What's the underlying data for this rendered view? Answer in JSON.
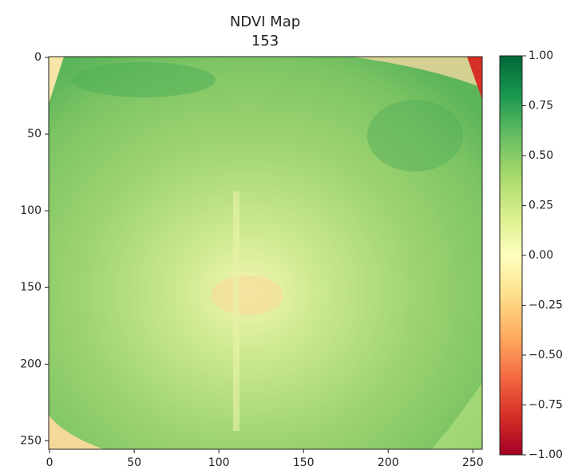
{
  "chart_data": {
    "type": "heatmap",
    "title": "NDVI Map",
    "subtitle": "153",
    "xlim": [
      -0.5,
      255.5
    ],
    "ylim": [
      255.5,
      -0.5
    ],
    "xticks": [
      0,
      50,
      100,
      150,
      200,
      250
    ],
    "yticks": [
      0,
      50,
      100,
      150,
      200,
      250
    ],
    "colorbar": {
      "lim": [
        -1,
        1
      ],
      "ticks": [
        {
          "value": 1,
          "label": "1.00"
        },
        {
          "value": 0.75,
          "label": "0.75"
        },
        {
          "value": 0.5,
          "label": "0.50"
        },
        {
          "value": 0.25,
          "label": "0.25"
        },
        {
          "value": 0,
          "label": "0.00"
        },
        {
          "value": -0.25,
          "label": "−0.25"
        },
        {
          "value": -0.5,
          "label": "−0.50"
        },
        {
          "value": -0.75,
          "label": "−0.75"
        },
        {
          "value": -1,
          "label": "−1.00"
        }
      ],
      "colormap": [
        "#a50026",
        "#d73027",
        "#f46d43",
        "#fdae61",
        "#fee08b",
        "#ffffbf",
        "#d9ef8b",
        "#a6d96a",
        "#66bd63",
        "#1a9850",
        "#006837"
      ]
    }
  }
}
